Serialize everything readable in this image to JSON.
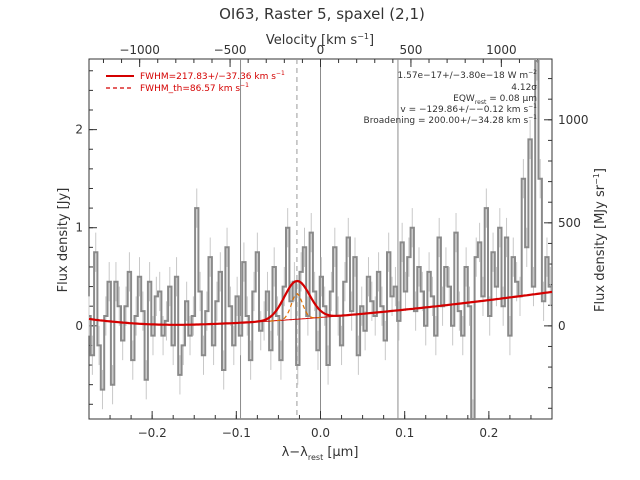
{
  "chart_data": {
    "type": "line",
    "title": "OI63, Raster 5, spaxel (2,1)",
    "xlabel": "λ−λ",
    "xlabel_sub": "rest",
    "xlabel_unit": "[μm]",
    "ylabel_left": "Flux density [Jy]",
    "ylabel_right": "Flux density [MJy sr",
    "ylabel_right_sup": "−1",
    "ylabel_right_close": "]",
    "top_axis_label": "Velocity [km s",
    "top_axis_label_sup": "−1",
    "top_axis_label_close": "]",
    "xlim": [
      -0.275,
      0.275
    ],
    "ylim": [
      -0.95,
      2.72
    ],
    "right_ylim": [
      -452,
      1295
    ],
    "top_xlim": [
      -1280,
      1280
    ],
    "x_ticks": [
      -0.2,
      -0.1,
      0.0,
      0.1,
      0.2
    ],
    "x_tick_labels": [
      "−0.2",
      "−0.1",
      "0.0",
      "0.1",
      "0.2"
    ],
    "y_ticks": [
      0,
      1,
      2
    ],
    "y_tick_labels": [
      "0",
      "1",
      "2"
    ],
    "right_ticks": [
      0,
      500,
      1000
    ],
    "right_tick_labels": [
      "0",
      "500",
      "1000"
    ],
    "top_ticks": [
      -1000,
      -500,
      0,
      500,
      1000
    ],
    "top_tick_labels": [
      "−1000",
      "−500",
      "0",
      "500",
      "1000"
    ],
    "vertical_lines_solid": [
      -0.095,
      0.0,
      0.092
    ],
    "vertical_line_dashed": -0.028,
    "legend": {
      "placement": "top-left",
      "entries": [
        {
          "label": "FWHM=217.83+/−37.36 km s",
          "sup": "−1",
          "style": "solid",
          "color": "#d40000"
        },
        {
          "label": "FWHM_th=86.57 km s",
          "sup": "−1",
          "style": "dashed",
          "color": "#d40000"
        }
      ]
    },
    "annotations": [
      {
        "text": "1.57e−17+/−3.80e−18 W m",
        "sup": "−2"
      },
      {
        "text": "4.12σ"
      },
      {
        "text": "EQW",
        "sub": "rest",
        "tail": " = 0.08 μm"
      },
      {
        "text": "v = −129.86+/−−0.12 km s",
        "sup": "−1"
      },
      {
        "text": "Broadening = 200.00+/−34.28 km s",
        "sup": "−1"
      }
    ],
    "series": [
      {
        "style": "step",
        "color": "#8a8a8a",
        "x": [
          -0.275,
          -0.271,
          -0.267,
          -0.263,
          -0.259,
          -0.255,
          -0.251,
          -0.247,
          -0.243,
          -0.239,
          -0.235,
          -0.231,
          -0.227,
          -0.223,
          -0.219,
          -0.215,
          -0.211,
          -0.207,
          -0.203,
          -0.199,
          -0.195,
          -0.191,
          -0.187,
          -0.183,
          -0.179,
          -0.175,
          -0.171,
          -0.167,
          -0.163,
          -0.159,
          -0.155,
          -0.151,
          -0.147,
          -0.143,
          -0.139,
          -0.135,
          -0.131,
          -0.127,
          -0.123,
          -0.119,
          -0.115,
          -0.111,
          -0.107,
          -0.103,
          -0.099,
          -0.095,
          -0.091,
          -0.087,
          -0.083,
          -0.079,
          -0.075,
          -0.071,
          -0.067,
          -0.063,
          -0.059,
          -0.055,
          -0.051,
          -0.047,
          -0.043,
          -0.039,
          -0.035,
          -0.031,
          -0.027,
          -0.023,
          -0.019,
          -0.015,
          -0.011,
          -0.007,
          -0.003,
          0.001,
          0.005,
          0.009,
          0.013,
          0.017,
          0.021,
          0.025,
          0.029,
          0.033,
          0.037,
          0.041,
          0.045,
          0.049,
          0.053,
          0.057,
          0.061,
          0.065,
          0.069,
          0.073,
          0.077,
          0.081,
          0.085,
          0.089,
          0.093,
          0.097,
          0.101,
          0.105,
          0.109,
          0.113,
          0.117,
          0.121,
          0.125,
          0.129,
          0.133,
          0.137,
          0.141,
          0.145,
          0.149,
          0.153,
          0.157,
          0.161,
          0.165,
          0.169,
          0.173,
          0.177,
          0.181,
          0.185,
          0.189,
          0.193,
          0.197,
          0.201,
          0.205,
          0.209,
          0.213,
          0.217,
          0.221,
          0.225,
          0.229,
          0.233,
          0.237,
          0.241,
          0.245,
          0.249,
          0.253,
          0.257,
          0.261,
          0.265,
          0.269,
          0.273
        ],
        "y": [
          0.1,
          -0.3,
          0.75,
          -0.2,
          -0.65,
          0.1,
          0.45,
          -0.6,
          0.45,
          0.2,
          -0.15,
          0.2,
          0.55,
          -0.35,
          0.1,
          0.5,
          0.15,
          -0.55,
          0.45,
          -0.1,
          0.3,
          0.35,
          -0.1,
          0.05,
          0.4,
          -0.2,
          0.5,
          -0.5,
          -0.2,
          0.25,
          -0.1,
          0.1,
          1.2,
          0.35,
          -0.3,
          0.15,
          0.7,
          -0.2,
          0.25,
          0.55,
          -0.45,
          0.8,
          0.2,
          -0.2,
          0.3,
          -0.1,
          0.65,
          0.1,
          -0.35,
          0.35,
          0.75,
          -0.05,
          0.05,
          0.35,
          -0.25,
          0.6,
          0.1,
          -0.35,
          0.4,
          1.0,
          0.25,
          0.45,
          -0.4,
          0.55,
          0.8,
          0.1,
          0.95,
          0.35,
          -0.25,
          0.5,
          0.2,
          -0.4,
          0.35,
          0.8,
          0.1,
          -0.2,
          0.45,
          0.9,
          0.15,
          0.7,
          -0.3,
          0.2,
          -0.05,
          0.5,
          0.25,
          0.1,
          0.55,
          0.2,
          -0.15,
          0.75,
          0.3,
          0.4,
          0.05,
          0.85,
          0.35,
          0.7,
          1.0,
          0.15,
          0.6,
          0.35,
          0.0,
          0.55,
          0.3,
          -0.1,
          0.9,
          0.2,
          0.6,
          0.4,
          0.0,
          0.95,
          0.15,
          -0.1,
          0.6,
          0.2,
          -0.95,
          0.7,
          0.85,
          0.3,
          1.2,
          0.1,
          0.75,
          0.4,
          1.0,
          0.2,
          0.9,
          -0.1,
          0.7,
          0.45,
          0.3,
          1.5,
          0.8,
          1.9,
          0.4,
          2.7,
          1.5,
          0.25,
          0.7,
          0.4
        ]
      },
      {
        "name": "continuum+line fit",
        "color": "#d40000",
        "style": "solid"
      },
      {
        "name": "continuum",
        "color": "#d40000",
        "style": "solid-thin"
      },
      {
        "name": "line component",
        "color": "#e07000",
        "style": "dashed"
      }
    ]
  }
}
